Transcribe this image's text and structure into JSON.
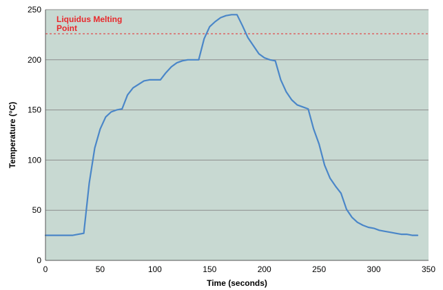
{
  "chart_data": {
    "type": "line",
    "xlabel": "Time (seconds)",
    "ylabel": "Temperature (°C)",
    "xlim": [
      0,
      350
    ],
    "ylim": [
      0,
      250
    ],
    "x_ticks": [
      0,
      50,
      100,
      150,
      200,
      250,
      300,
      350
    ],
    "y_ticks": [
      0,
      50,
      100,
      150,
      200,
      250
    ],
    "grid": "horizontal",
    "colors": {
      "plot_background": "#c8d9d2",
      "line": "#4a86c8",
      "reference_line": "#e8282b",
      "gridline": "#8c8c8c"
    },
    "reference_line": {
      "y": 226,
      "label_lines": [
        "Liquidus Melting",
        "Point"
      ]
    },
    "series": [
      {
        "x": [
          0,
          10,
          20,
          25,
          30,
          35,
          40,
          45,
          50,
          55,
          60,
          65,
          70,
          75,
          80,
          90,
          95,
          100,
          105,
          110,
          115,
          120,
          125,
          130,
          135,
          140,
          145,
          150,
          155,
          160,
          165,
          170,
          175,
          180,
          185,
          190,
          195,
          200,
          205,
          210,
          215,
          220,
          225,
          230,
          235,
          240,
          245,
          250,
          255,
          260,
          265,
          270,
          275,
          280,
          285,
          290,
          295,
          300,
          305,
          310,
          315,
          320,
          325,
          330,
          335,
          340
        ],
        "y": [
          25,
          25,
          25,
          25,
          26,
          27,
          77,
          112,
          131,
          143,
          148,
          150,
          151,
          165,
          172,
          179,
          180,
          180,
          180,
          187,
          193,
          197,
          199,
          200,
          200,
          200,
          221,
          233,
          238,
          242,
          244,
          245,
          245,
          234,
          222,
          214,
          206,
          202,
          200,
          199,
          180,
          168,
          160,
          155,
          153,
          151,
          131,
          116,
          95,
          82,
          74,
          67,
          51,
          43,
          38,
          35,
          33,
          32,
          30,
          29,
          28,
          27,
          26,
          26,
          25,
          25
        ]
      }
    ]
  }
}
